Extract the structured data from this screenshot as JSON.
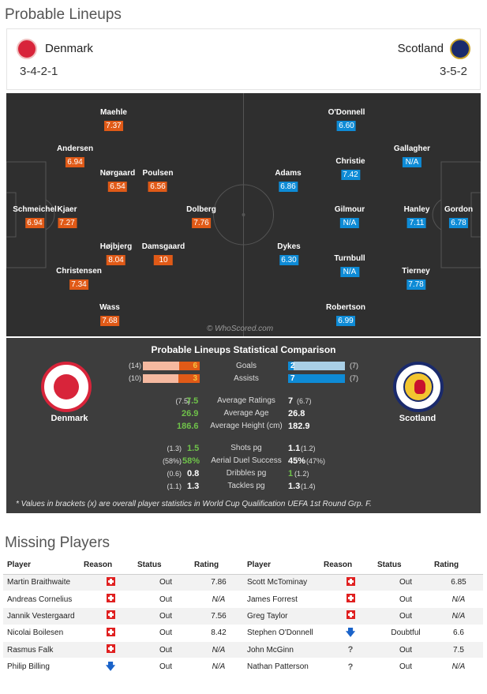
{
  "lineups": {
    "title": "Probable Lineups",
    "home": {
      "name": "Denmark",
      "formation": "3-4-2-1",
      "crest_icon": "denmark-crest-icon",
      "color": "#e05a17"
    },
    "away": {
      "name": "Scotland",
      "formation": "3-5-2",
      "crest_icon": "scotland-crest-icon",
      "color": "#0e8bd6"
    },
    "home_players": [
      {
        "name": "Maehle",
        "rating": "7.37"
      },
      {
        "name": "Andersen",
        "rating": "6.94"
      },
      {
        "name": "Nørgaard",
        "rating": "6.54"
      },
      {
        "name": "Poulsen",
        "rating": "6.56"
      },
      {
        "name": "Schmeichel",
        "rating": "6.94"
      },
      {
        "name": "Kjaer",
        "rating": "7.27"
      },
      {
        "name": "Dolberg",
        "rating": "7.76"
      },
      {
        "name": "Højbjerg",
        "rating": "8.04"
      },
      {
        "name": "Damsgaard",
        "rating": "10"
      },
      {
        "name": "Christensen",
        "rating": "7.34"
      },
      {
        "name": "Wass",
        "rating": "7.68"
      }
    ],
    "away_players": [
      {
        "name": "O'Donnell",
        "rating": "6.60"
      },
      {
        "name": "Gallagher",
        "rating": "N/A"
      },
      {
        "name": "Christie",
        "rating": "7.42"
      },
      {
        "name": "Adams",
        "rating": "6.86"
      },
      {
        "name": "Gilmour",
        "rating": "N/A"
      },
      {
        "name": "Hanley",
        "rating": "7.11"
      },
      {
        "name": "Gordon",
        "rating": "6.78"
      },
      {
        "name": "Dykes",
        "rating": "6.30"
      },
      {
        "name": "Turnbull",
        "rating": "N/A"
      },
      {
        "name": "Tierney",
        "rating": "7.78"
      },
      {
        "name": "Robertson",
        "rating": "6.99"
      }
    ],
    "watermark": "© WhoScored.com"
  },
  "comparison": {
    "title": "Probable Lineups Statistical Comparison",
    "home_name": "Denmark",
    "away_name": "Scotland",
    "bars": [
      {
        "label": "Goals",
        "home": "6",
        "home_br": "(14)",
        "away": "2",
        "away_br": "(7)",
        "home_frac": 0.36,
        "away_frac": 0.1
      },
      {
        "label": "Assists",
        "home": "3",
        "home_br": "(10)",
        "away": "7",
        "away_br": "(7)",
        "home_frac": 0.37,
        "away_frac": 1.0
      }
    ],
    "stats_a": [
      {
        "label": "Average Ratings",
        "home_br": "(7.5)",
        "home": "7.5",
        "away": "7",
        "away_br": "(6.7)"
      },
      {
        "label": "Average Age",
        "home_br": "",
        "home": "26.9",
        "away": "26.8",
        "away_br": ""
      },
      {
        "label": "Average Height (cm)",
        "home_br": "",
        "home": "186.6",
        "away": "182.9",
        "away_br": ""
      }
    ],
    "stats_b": [
      {
        "label": "Shots pg",
        "home_br": "(1.3)",
        "home": "1.5",
        "away": "1.1",
        "away_br": "(1.2)",
        "lead": "home"
      },
      {
        "label": "Aerial Duel Success",
        "home_br": "(58%)",
        "home": "58%",
        "away": "45%",
        "away_br": "(47%)",
        "lead": "home"
      },
      {
        "label": "Dribbles pg",
        "home_br": "(0.6)",
        "home": "0.8",
        "away": "1",
        "away_br": "(1.2)",
        "lead": "away"
      },
      {
        "label": "Tackles pg",
        "home_br": "(1.1)",
        "home": "1.3",
        "away": "1.3",
        "away_br": "(1.4)",
        "lead": "none"
      }
    ],
    "footnote": "* Values in brackets (x) are overall player statistics in World Cup Qualification UEFA 1st Round Grp. F."
  },
  "missing": {
    "title": "Missing Players",
    "headers": [
      "Player",
      "Reason",
      "Status",
      "Rating",
      "Player",
      "Reason",
      "Status",
      "Rating"
    ],
    "rows": [
      {
        "h_name": "Martin Braithwaite",
        "h_reason": "injury",
        "h_status": "Out",
        "h_rating": "7.86",
        "a_name": "Scott McTominay",
        "a_reason": "injury",
        "a_status": "Out",
        "a_rating": "6.85"
      },
      {
        "h_name": "Andreas Cornelius",
        "h_reason": "injury",
        "h_status": "Out",
        "h_rating": "N/A",
        "a_name": "James Forrest",
        "a_reason": "injury",
        "a_status": "Out",
        "a_rating": "N/A"
      },
      {
        "h_name": "Jannik Vestergaard",
        "h_reason": "injury",
        "h_status": "Out",
        "h_rating": "7.56",
        "a_name": "Greg Taylor",
        "a_reason": "injury",
        "a_status": "Out",
        "a_rating": "N/A"
      },
      {
        "h_name": "Nicolai Boilesen",
        "h_reason": "injury",
        "h_status": "Out",
        "h_rating": "8.42",
        "a_name": "Stephen O'Donnell",
        "a_reason": "other",
        "a_status": "Doubtful",
        "a_rating": "6.6"
      },
      {
        "h_name": "Rasmus Falk",
        "h_reason": "injury",
        "h_status": "Out",
        "h_rating": "N/A",
        "a_name": "John McGinn",
        "a_reason": "unknown",
        "a_status": "Out",
        "a_rating": "7.5"
      },
      {
        "h_name": "Philip Billing",
        "h_reason": "other",
        "h_status": "Out",
        "h_rating": "N/A",
        "a_name": "Nathan Patterson",
        "a_reason": "unknown",
        "a_status": "Out",
        "a_rating": "N/A"
      }
    ]
  }
}
